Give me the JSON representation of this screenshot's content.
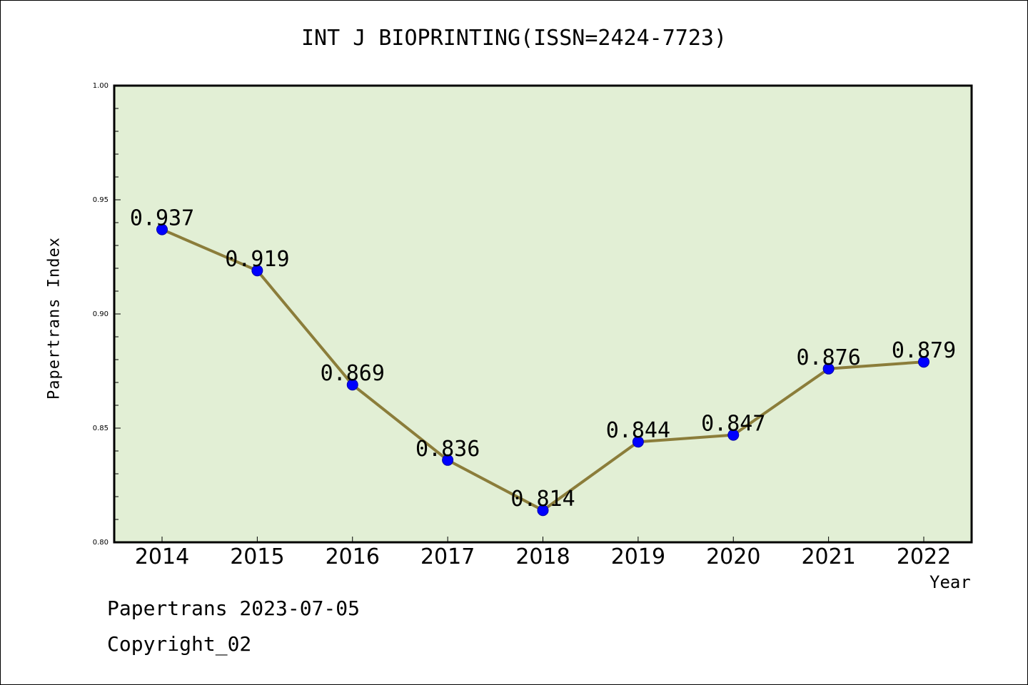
{
  "chart_data": {
    "type": "line",
    "title": "INT J BIOPRINTING(ISSN=2424-7723)",
    "xlabel": "Year",
    "ylabel": "Papertrans Index",
    "categories": [
      "2014",
      "2015",
      "2016",
      "2017",
      "2018",
      "2019",
      "2020",
      "2021",
      "2022"
    ],
    "values": [
      0.937,
      0.919,
      0.869,
      0.836,
      0.814,
      0.844,
      0.847,
      0.876,
      0.879
    ],
    "data_labels": [
      "0.937",
      "0.919",
      "0.869",
      "0.836",
      "0.814",
      "0.844",
      "0.847",
      "0.876",
      "0.879"
    ],
    "ylim": [
      0.8,
      1.0
    ],
    "yticks": [
      "0.80",
      "0.85",
      "0.90",
      "0.95",
      "1.00"
    ],
    "grid": false,
    "colors": {
      "line": "#8b7d3a",
      "marker": "#0000ff",
      "plot_background": "#e2efd5",
      "axis": "#000000"
    }
  },
  "footer": {
    "date_line": "Papertrans 2023-07-05",
    "copyright": "Copyright_02"
  }
}
